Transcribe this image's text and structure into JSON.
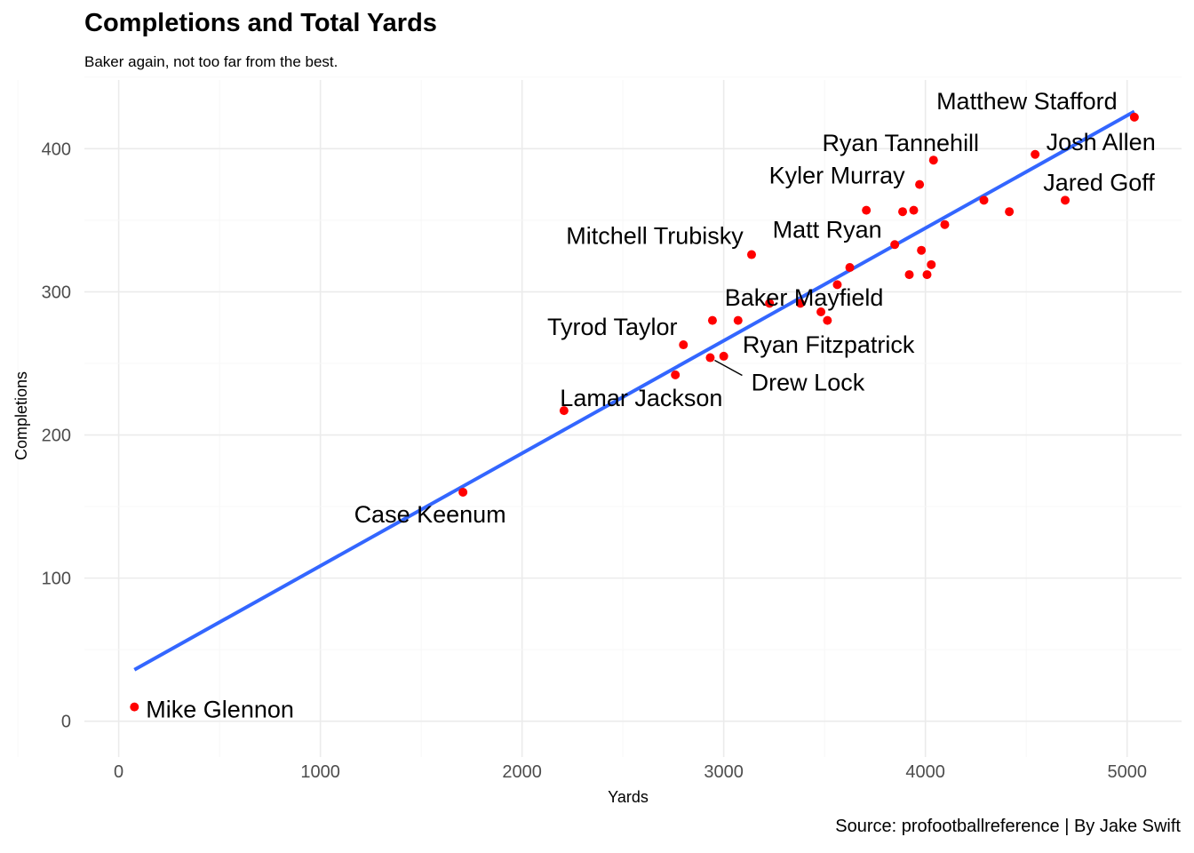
{
  "chart_data": {
    "type": "scatter",
    "title": "Completions and Total Yards",
    "subtitle": "Baker again, not too far from the best.",
    "caption": "Source: profootballreference | By Jake Swift",
    "xlabel": "Yards",
    "ylabel": "Completions",
    "xlim": [
      -170,
      5270
    ],
    "ylim": [
      -25,
      448
    ],
    "xticks": [
      0,
      1000,
      2000,
      3000,
      4000,
      5000
    ],
    "yticks": [
      0,
      100,
      200,
      300,
      400
    ],
    "grid": true,
    "point_color": "#FF0000",
    "trend_color": "#3366FF",
    "trend_line": {
      "x": [
        78,
        5036
      ],
      "y": [
        36,
        426
      ]
    },
    "points": [
      {
        "x": 78,
        "y": 10,
        "label": "Mike Glennon"
      },
      {
        "x": 1707,
        "y": 160,
        "label": "Case Keenum"
      },
      {
        "x": 2208,
        "y": 217,
        "label": "Lamar Jackson"
      },
      {
        "x": 2760,
        "y": 242,
        "label": ""
      },
      {
        "x": 2800,
        "y": 263,
        "label": "Tyrod Taylor"
      },
      {
        "x": 2933,
        "y": 254,
        "label": "Drew Lock"
      },
      {
        "x": 2944,
        "y": 280,
        "label": ""
      },
      {
        "x": 3000,
        "y": 255,
        "label": "Ryan Fitzpatrick"
      },
      {
        "x": 3071,
        "y": 280,
        "label": ""
      },
      {
        "x": 3138,
        "y": 326,
        "label": "Mitchell Trubisky"
      },
      {
        "x": 3227,
        "y": 292,
        "label": ""
      },
      {
        "x": 3380,
        "y": 292,
        "label": ""
      },
      {
        "x": 3482,
        "y": 286,
        "label": "Baker Mayfield"
      },
      {
        "x": 3514,
        "y": 280,
        "label": ""
      },
      {
        "x": 3563,
        "y": 305,
        "label": ""
      },
      {
        "x": 3625,
        "y": 317,
        "label": ""
      },
      {
        "x": 3707,
        "y": 357,
        "label": ""
      },
      {
        "x": 3848,
        "y": 333,
        "label": "Matt Ryan"
      },
      {
        "x": 3887,
        "y": 356,
        "label": ""
      },
      {
        "x": 3920,
        "y": 312,
        "label": ""
      },
      {
        "x": 3942,
        "y": 357,
        "label": ""
      },
      {
        "x": 3971,
        "y": 375,
        "label": "Kyler Murray"
      },
      {
        "x": 3980,
        "y": 329,
        "label": ""
      },
      {
        "x": 4008,
        "y": 312,
        "label": ""
      },
      {
        "x": 4029,
        "y": 319,
        "label": ""
      },
      {
        "x": 4040,
        "y": 392,
        "label": "Ryan Tannehill"
      },
      {
        "x": 4096,
        "y": 347,
        "label": ""
      },
      {
        "x": 4290,
        "y": 364,
        "label": ""
      },
      {
        "x": 4416,
        "y": 356,
        "label": ""
      },
      {
        "x": 4544,
        "y": 396,
        "label": "Josh Allen"
      },
      {
        "x": 4693,
        "y": 364,
        "label": "Jared Goff"
      },
      {
        "x": 5036,
        "y": 422,
        "label": "Matthew Stafford"
      }
    ]
  }
}
